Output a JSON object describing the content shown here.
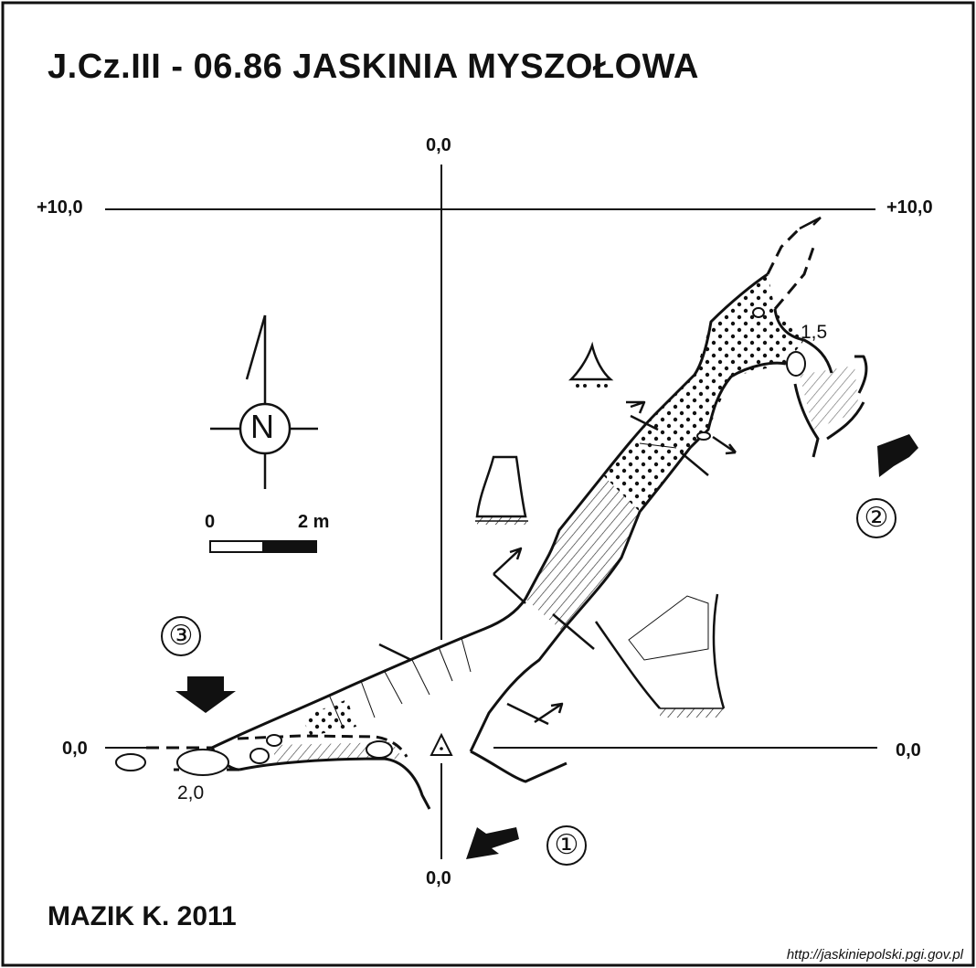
{
  "title": "J.Cz.III - 06.86  JASKINIA MYSZOŁOWA",
  "author": "MAZIK K. 2011",
  "source_url": "http://jaskiniepolski.pgi.gov.pl",
  "grid_labels": {
    "top_zero": "0,0",
    "bottom_zero": "0,0",
    "left_plus10": "+10,0",
    "right_plus10": "+10,0",
    "left_zero": "0,0",
    "right_zero": "0,0"
  },
  "scale_bar": {
    "start_label": "0",
    "end_label": "2 m"
  },
  "compass": {
    "letter": "N"
  },
  "depth_labels": {
    "chamber_height": "1,5",
    "passage_height": "2,0"
  },
  "entrance_markers": [
    "①",
    "②",
    "③"
  ],
  "colors": {
    "ink": "#111111",
    "paper": "#ffffff"
  }
}
